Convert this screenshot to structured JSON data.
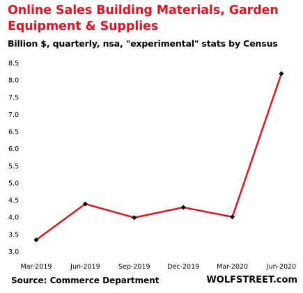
{
  "chart_data": {
    "type": "line",
    "title": "Online Sales Building Materials, Garden Equipment & Supplies",
    "subtitle": "Billion $, quarterly, nsa, \"experimental\" stats by Census",
    "categories": [
      "Mar-2019",
      "Jun-2019",
      "Sep-2019",
      "Dec-2019",
      "Mar-2020",
      "Jun-2020"
    ],
    "series": [
      {
        "values": [
          3.35,
          4.4,
          4.0,
          4.3,
          4.02,
          8.2
        ]
      }
    ],
    "ylim": [
      3.0,
      8.5
    ],
    "yticks": [
      "3.0",
      "3.5",
      "4.0",
      "4.5",
      "5.0",
      "5.5",
      "6.0",
      "6.5",
      "7.0",
      "7.5",
      "8.0",
      "8.5"
    ],
    "grid": false,
    "colors": {
      "title": "#e8101e",
      "line": "#e8101e",
      "marker": "#000000"
    },
    "source": "Source: Commerce Department",
    "brand": "WOLFSTREET.com"
  }
}
